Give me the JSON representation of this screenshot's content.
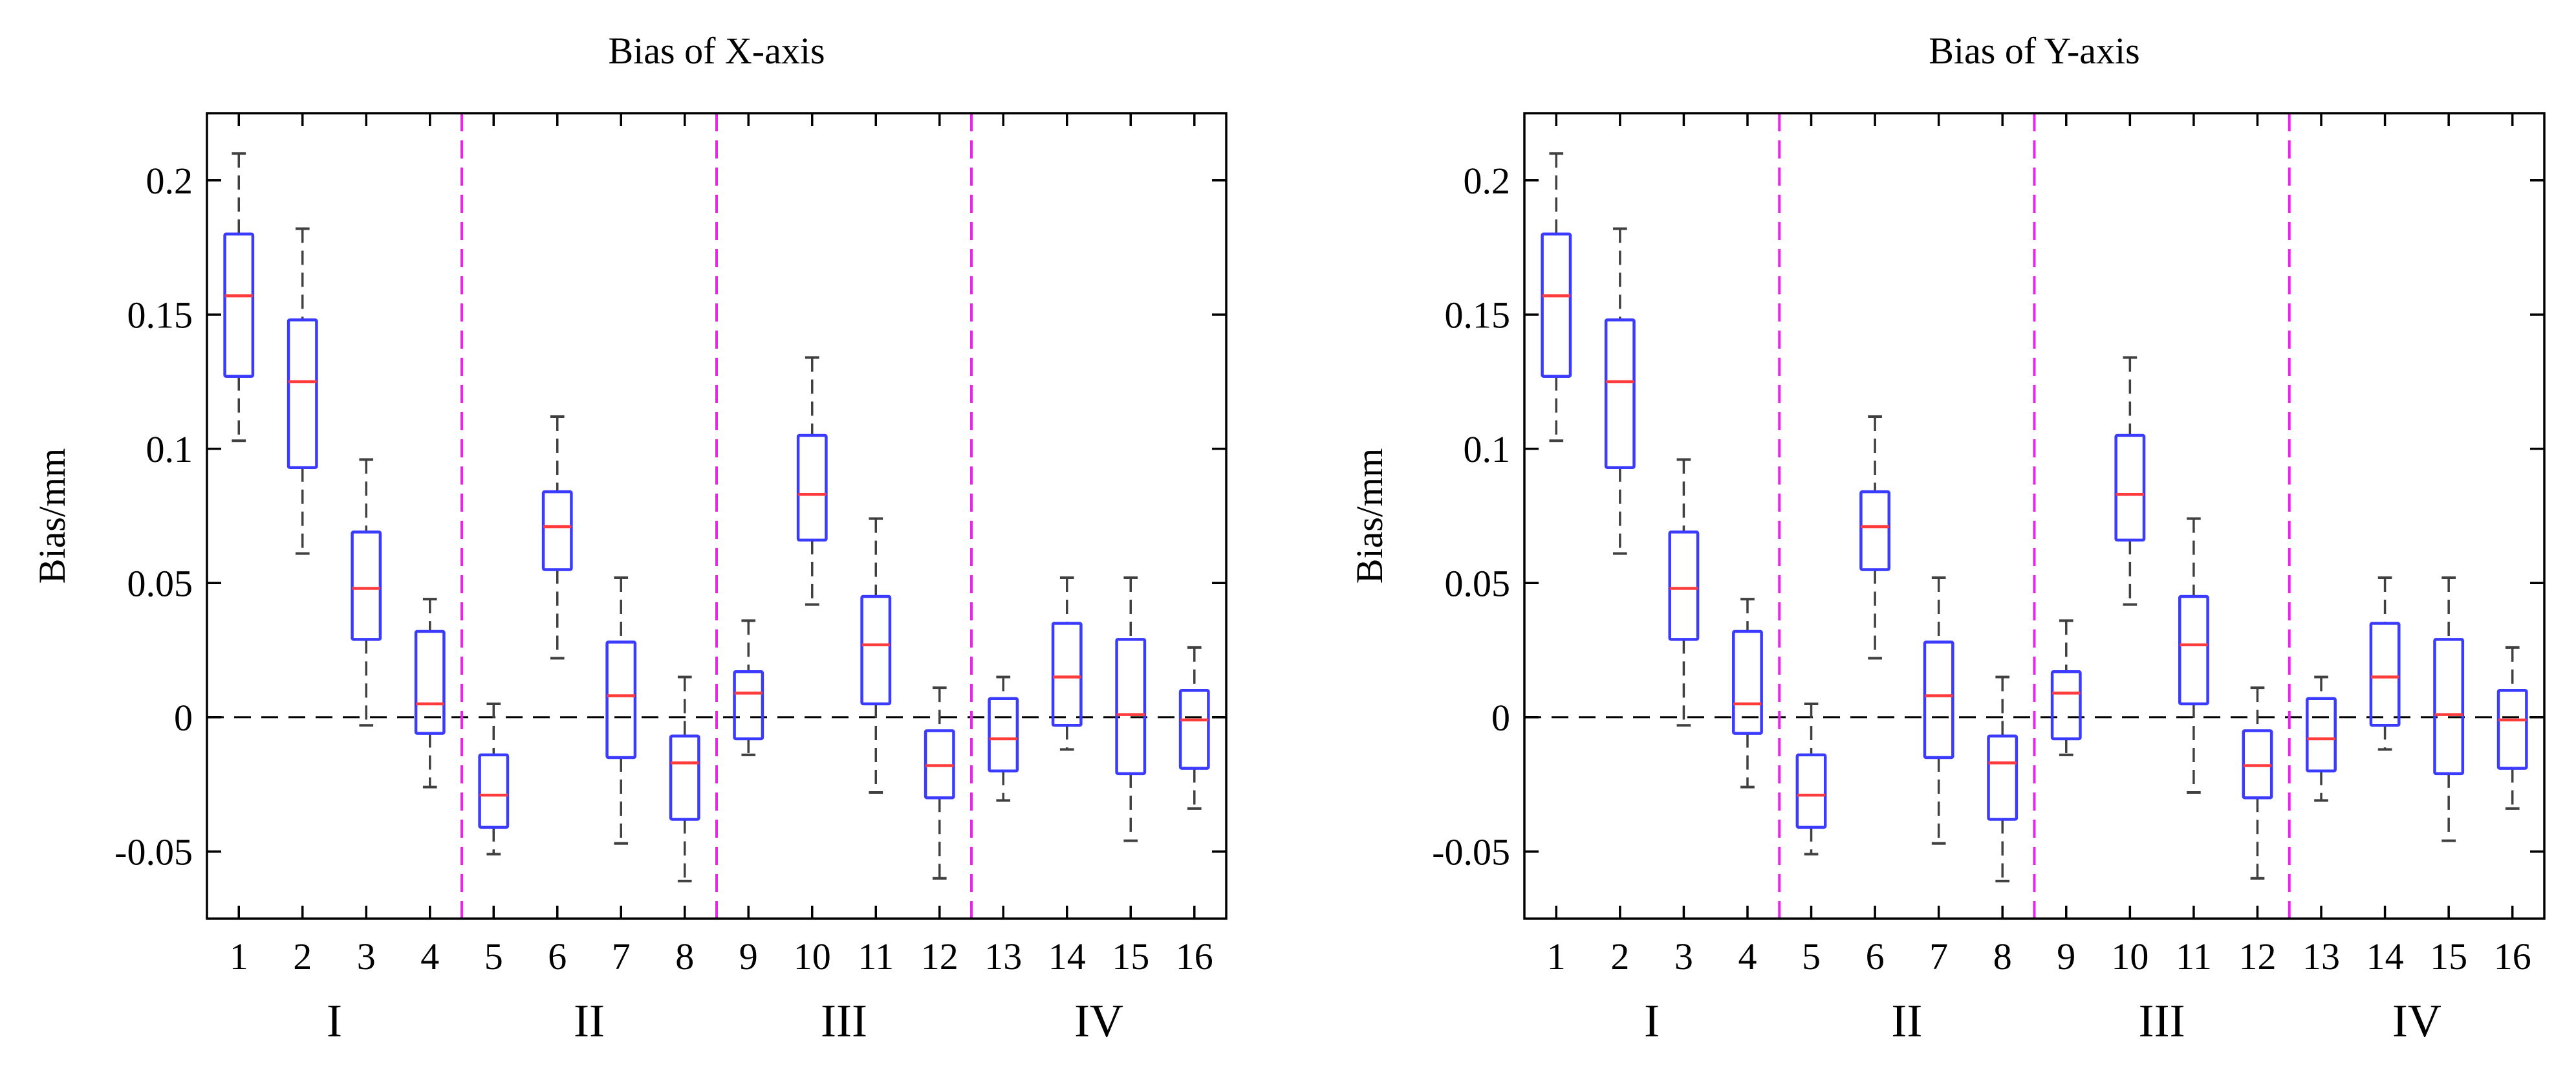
{
  "chart_data": [
    {
      "type": "box",
      "title": "Bias of X-axis",
      "xlabel": "",
      "ylabel": "Bias/mm",
      "ylim": [
        -0.075,
        0.225
      ],
      "yticks": [
        -0.05,
        0,
        0.05,
        0.1,
        0.15,
        0.2
      ],
      "ytick_labels": [
        "-0.05",
        "0",
        "0.05",
        "0.1",
        "0.15",
        "0.2"
      ],
      "categories": [
        "1",
        "2",
        "3",
        "4",
        "5",
        "6",
        "7",
        "8",
        "9",
        "10",
        "11",
        "12",
        "13",
        "14",
        "15",
        "16"
      ],
      "groups": [
        {
          "label": "I",
          "members": [
            1,
            2,
            3,
            4
          ]
        },
        {
          "label": "II",
          "members": [
            5,
            6,
            7,
            8
          ]
        },
        {
          "label": "III",
          "members": [
            9,
            10,
            11,
            12
          ]
        },
        {
          "label": "IV",
          "members": [
            13,
            14,
            15,
            16
          ]
        }
      ],
      "group_dividers": [
        4.5,
        8.5,
        12.5
      ],
      "reference_line": 0,
      "boxes": [
        {
          "min": 0.103,
          "q1": 0.127,
          "median": 0.157,
          "q3": 0.18,
          "max": 0.21
        },
        {
          "min": 0.061,
          "q1": 0.093,
          "median": 0.125,
          "q3": 0.148,
          "max": 0.182
        },
        {
          "min": -0.003,
          "q1": 0.029,
          "median": 0.048,
          "q3": 0.069,
          "max": 0.096
        },
        {
          "min": -0.026,
          "q1": -0.006,
          "median": 0.005,
          "q3": 0.032,
          "max": 0.044
        },
        {
          "min": -0.051,
          "q1": -0.041,
          "median": -0.029,
          "q3": -0.014,
          "max": 0.005
        },
        {
          "min": 0.022,
          "q1": 0.055,
          "median": 0.071,
          "q3": 0.084,
          "max": 0.112
        },
        {
          "min": -0.047,
          "q1": -0.015,
          "median": 0.008,
          "q3": 0.028,
          "max": 0.052
        },
        {
          "min": -0.061,
          "q1": -0.038,
          "median": -0.017,
          "q3": -0.007,
          "max": 0.015
        },
        {
          "min": -0.014,
          "q1": -0.008,
          "median": 0.009,
          "q3": 0.017,
          "max": 0.036
        },
        {
          "min": 0.042,
          "q1": 0.066,
          "median": 0.083,
          "q3": 0.105,
          "max": 0.134
        },
        {
          "min": -0.028,
          "q1": 0.005,
          "median": 0.027,
          "q3": 0.045,
          "max": 0.074
        },
        {
          "min": -0.06,
          "q1": -0.03,
          "median": -0.018,
          "q3": -0.005,
          "max": 0.011
        },
        {
          "min": -0.031,
          "q1": -0.02,
          "median": -0.008,
          "q3": 0.007,
          "max": 0.015
        },
        {
          "min": -0.012,
          "q1": -0.003,
          "median": 0.015,
          "q3": 0.035,
          "max": 0.052
        },
        {
          "min": -0.046,
          "q1": -0.021,
          "median": 0.001,
          "q3": 0.029,
          "max": 0.052
        },
        {
          "min": -0.034,
          "q1": -0.019,
          "median": -0.001,
          "q3": 0.01,
          "max": 0.026
        }
      ],
      "colors": {
        "box": "#3b3bff",
        "median": "#ff3b3b",
        "whisker": "#404040",
        "divider": "#ee22ee",
        "reference": "#000000",
        "frame": "#000000"
      },
      "grid": false
    },
    {
      "type": "box",
      "title": "Bias of Y-axis",
      "xlabel": "",
      "ylabel": "Bias/mm",
      "ylim": [
        -0.075,
        0.225
      ],
      "yticks": [
        -0.05,
        0,
        0.05,
        0.1,
        0.15,
        0.2
      ],
      "ytick_labels": [
        "-0.05",
        "0",
        "0.05",
        "0.1",
        "0.15",
        "0.2"
      ],
      "categories": [
        "1",
        "2",
        "3",
        "4",
        "5",
        "6",
        "7",
        "8",
        "9",
        "10",
        "11",
        "12",
        "13",
        "14",
        "15",
        "16"
      ],
      "groups": [
        {
          "label": "I",
          "members": [
            1,
            2,
            3,
            4
          ]
        },
        {
          "label": "II",
          "members": [
            5,
            6,
            7,
            8
          ]
        },
        {
          "label": "III",
          "members": [
            9,
            10,
            11,
            12
          ]
        },
        {
          "label": "IV",
          "members": [
            13,
            14,
            15,
            16
          ]
        }
      ],
      "group_dividers": [
        4.5,
        8.5,
        12.5
      ],
      "reference_line": 0,
      "boxes": [
        {
          "min": 0.103,
          "q1": 0.127,
          "median": 0.157,
          "q3": 0.18,
          "max": 0.21
        },
        {
          "min": 0.061,
          "q1": 0.093,
          "median": 0.125,
          "q3": 0.148,
          "max": 0.182
        },
        {
          "min": -0.003,
          "q1": 0.029,
          "median": 0.048,
          "q3": 0.069,
          "max": 0.096
        },
        {
          "min": -0.026,
          "q1": -0.006,
          "median": 0.005,
          "q3": 0.032,
          "max": 0.044
        },
        {
          "min": -0.051,
          "q1": -0.041,
          "median": -0.029,
          "q3": -0.014,
          "max": 0.005
        },
        {
          "min": 0.022,
          "q1": 0.055,
          "median": 0.071,
          "q3": 0.084,
          "max": 0.112
        },
        {
          "min": -0.047,
          "q1": -0.015,
          "median": 0.008,
          "q3": 0.028,
          "max": 0.052
        },
        {
          "min": -0.061,
          "q1": -0.038,
          "median": -0.017,
          "q3": -0.007,
          "max": 0.015
        },
        {
          "min": -0.014,
          "q1": -0.008,
          "median": 0.009,
          "q3": 0.017,
          "max": 0.036
        },
        {
          "min": 0.042,
          "q1": 0.066,
          "median": 0.083,
          "q3": 0.105,
          "max": 0.134
        },
        {
          "min": -0.028,
          "q1": 0.005,
          "median": 0.027,
          "q3": 0.045,
          "max": 0.074
        },
        {
          "min": -0.06,
          "q1": -0.03,
          "median": -0.018,
          "q3": -0.005,
          "max": 0.011
        },
        {
          "min": -0.031,
          "q1": -0.02,
          "median": -0.008,
          "q3": 0.007,
          "max": 0.015
        },
        {
          "min": -0.012,
          "q1": -0.003,
          "median": 0.015,
          "q3": 0.035,
          "max": 0.052
        },
        {
          "min": -0.046,
          "q1": -0.021,
          "median": 0.001,
          "q3": 0.029,
          "max": 0.052
        },
        {
          "min": -0.034,
          "q1": -0.019,
          "median": -0.001,
          "q3": 0.01,
          "max": 0.026
        }
      ],
      "colors": {
        "box": "#3b3bff",
        "median": "#ff3b3b",
        "whisker": "#404040",
        "divider": "#ee22ee",
        "reference": "#000000",
        "frame": "#000000"
      },
      "grid": false
    }
  ]
}
